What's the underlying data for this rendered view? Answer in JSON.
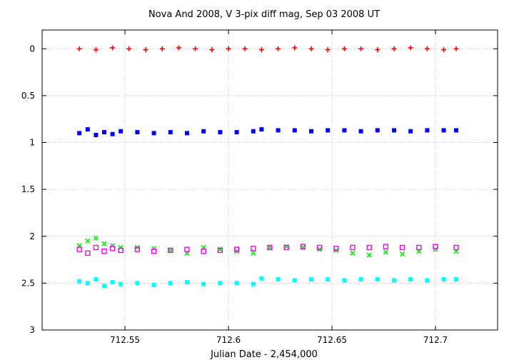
{
  "chart_data": {
    "type": "scatter",
    "title": "Nova And 2008, V 3-pix diff mag, Sep 03 2008 UT",
    "xlabel": "Julian Date - 2,454,000",
    "ylabel": "",
    "xlim": [
      712.51,
      712.73
    ],
    "ylim": [
      3,
      -0.2
    ],
    "y_reversed": true,
    "grid": true,
    "x_ticks": [
      {
        "value": 712.55,
        "label": "712.55"
      },
      {
        "value": 712.6,
        "label": "712.6"
      },
      {
        "value": 712.65,
        "label": "712.65"
      },
      {
        "value": 712.7,
        "label": "712.7"
      }
    ],
    "y_ticks": [
      {
        "value": 0,
        "label": "0"
      },
      {
        "value": 0.5,
        "label": "0.5"
      },
      {
        "value": 1,
        "label": "1"
      },
      {
        "value": 1.5,
        "label": "1.5"
      },
      {
        "value": 2,
        "label": "2"
      },
      {
        "value": 2.5,
        "label": "2.5"
      },
      {
        "value": 3,
        "label": "3"
      }
    ],
    "series": [
      {
        "color": "#ff0000",
        "marker": "plus",
        "x": [
          712.528,
          712.536,
          712.544,
          712.552,
          712.56,
          712.568,
          712.576,
          712.584,
          712.592,
          712.6,
          712.608,
          712.616,
          712.624,
          712.632,
          712.64,
          712.648,
          712.656,
          712.664,
          712.672,
          712.68,
          712.688,
          712.696,
          712.704,
          712.71
        ],
        "y": [
          0.0,
          0.01,
          -0.01,
          0.0,
          0.01,
          0.0,
          -0.01,
          0.0,
          0.01,
          0.0,
          0.0,
          0.01,
          0.0,
          -0.01,
          0.0,
          0.01,
          0.0,
          0.0,
          0.01,
          0.0,
          -0.01,
          0.0,
          0.01,
          0.0
        ]
      },
      {
        "color": "#0000ff",
        "marker": "filled-square",
        "x": [
          712.528,
          712.532,
          712.536,
          712.54,
          712.544,
          712.548,
          712.556,
          712.564,
          712.572,
          712.58,
          712.588,
          712.596,
          712.604,
          712.612,
          712.616,
          712.624,
          712.632,
          712.64,
          712.648,
          712.656,
          712.664,
          712.672,
          712.68,
          712.688,
          712.696,
          712.704,
          712.71
        ],
        "y": [
          0.9,
          0.86,
          0.92,
          0.89,
          0.91,
          0.88,
          0.89,
          0.9,
          0.89,
          0.9,
          0.88,
          0.89,
          0.89,
          0.88,
          0.86,
          0.87,
          0.87,
          0.88,
          0.87,
          0.87,
          0.88,
          0.87,
          0.87,
          0.88,
          0.87,
          0.87,
          0.87
        ]
      },
      {
        "color": "#00ee00",
        "marker": "cross",
        "x": [
          712.528,
          712.532,
          712.536,
          712.54,
          712.544,
          712.548,
          712.556,
          712.564,
          712.572,
          712.58,
          712.588,
          712.596,
          712.604,
          712.612,
          712.62,
          712.628,
          712.636,
          712.644,
          712.652,
          712.66,
          712.668,
          712.676,
          712.684,
          712.692,
          712.7,
          712.71
        ],
        "y": [
          2.1,
          2.05,
          2.02,
          2.08,
          2.1,
          2.12,
          2.12,
          2.13,
          2.15,
          2.18,
          2.12,
          2.14,
          2.16,
          2.18,
          2.12,
          2.11,
          2.12,
          2.14,
          2.15,
          2.18,
          2.2,
          2.17,
          2.19,
          2.16,
          2.14,
          2.16
        ]
      },
      {
        "color": "#ff00ff",
        "marker": "open-square",
        "x": [
          712.528,
          712.532,
          712.536,
          712.54,
          712.544,
          712.548,
          712.556,
          712.564,
          712.572,
          712.58,
          712.588,
          712.596,
          712.604,
          712.612,
          712.62,
          712.628,
          712.636,
          712.644,
          712.652,
          712.66,
          712.668,
          712.676,
          712.684,
          712.692,
          712.7,
          712.71
        ],
        "y": [
          2.14,
          2.18,
          2.12,
          2.16,
          2.13,
          2.15,
          2.14,
          2.16,
          2.15,
          2.14,
          2.16,
          2.15,
          2.14,
          2.13,
          2.12,
          2.12,
          2.11,
          2.12,
          2.13,
          2.12,
          2.12,
          2.11,
          2.12,
          2.12,
          2.11,
          2.12
        ]
      },
      {
        "color": "#00ffff",
        "marker": "filled-square",
        "x": [
          712.528,
          712.532,
          712.536,
          712.54,
          712.544,
          712.548,
          712.556,
          712.564,
          712.572,
          712.58,
          712.588,
          712.596,
          712.604,
          712.612,
          712.616,
          712.624,
          712.632,
          712.64,
          712.648,
          712.656,
          712.664,
          712.672,
          712.68,
          712.688,
          712.696,
          712.704,
          712.71
        ],
        "y": [
          2.48,
          2.5,
          2.46,
          2.53,
          2.49,
          2.51,
          2.5,
          2.52,
          2.5,
          2.49,
          2.51,
          2.5,
          2.5,
          2.51,
          2.45,
          2.46,
          2.47,
          2.46,
          2.46,
          2.47,
          2.46,
          2.46,
          2.47,
          2.46,
          2.47,
          2.46,
          2.46
        ]
      }
    ]
  }
}
